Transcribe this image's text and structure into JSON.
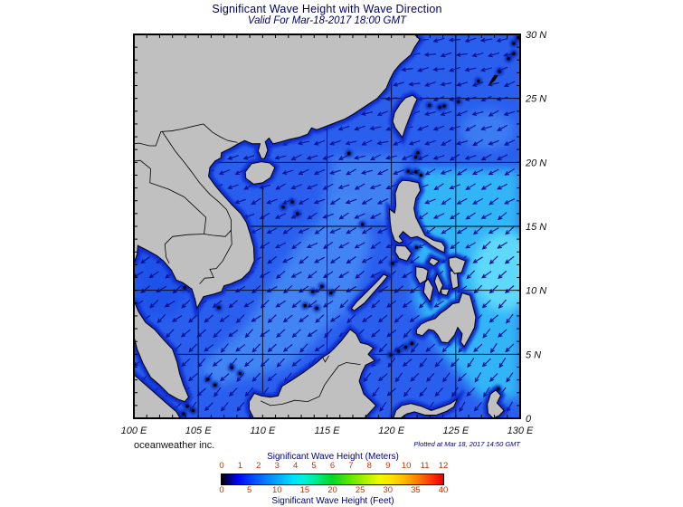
{
  "header": {
    "title": "Significant Wave Height with Wave Direction",
    "subtitle": "Valid For Mar-18-2017 18:00 GMT"
  },
  "map": {
    "lat_labels": [
      "30 N",
      "25 N",
      "20 N",
      "15 N",
      "10 N",
      "5 N",
      "0"
    ],
    "lon_labels": [
      "100 E",
      "105 E",
      "110 E",
      "115 E",
      "120 E",
      "125 E",
      "130 E"
    ],
    "wave_direction_trend": "arrows point west to southwest",
    "land_color": "#c0c0c0",
    "arrow_color": "#000d8f",
    "sea_colors": {
      "base": "#2a5fee",
      "light": "#4489f4",
      "cyan": "#30b5f6",
      "bright_cyan": "#5fd9fb",
      "gulf": "#1f51e9",
      "coastal": "#0a2ad0",
      "speck_halo": "#0020b0"
    }
  },
  "legend": {
    "meters_label": "Significant Wave Height (Meters)",
    "meters_ticks": [
      "0",
      "1",
      "2",
      "3",
      "4",
      "5",
      "6",
      "7",
      "8",
      "9",
      "10",
      "11",
      "12"
    ],
    "feet_label": "Significant Wave Height (Feet)",
    "feet_ticks": [
      "0",
      "5",
      "10",
      "15",
      "20",
      "25",
      "30",
      "35",
      "40"
    ],
    "tick_color": "#cc3300",
    "label_color": "#000080"
  },
  "footer": {
    "branding": "oceanweather inc.",
    "plotted_at": "Plotted at Mar 18, 2017 14:50 GMT"
  }
}
